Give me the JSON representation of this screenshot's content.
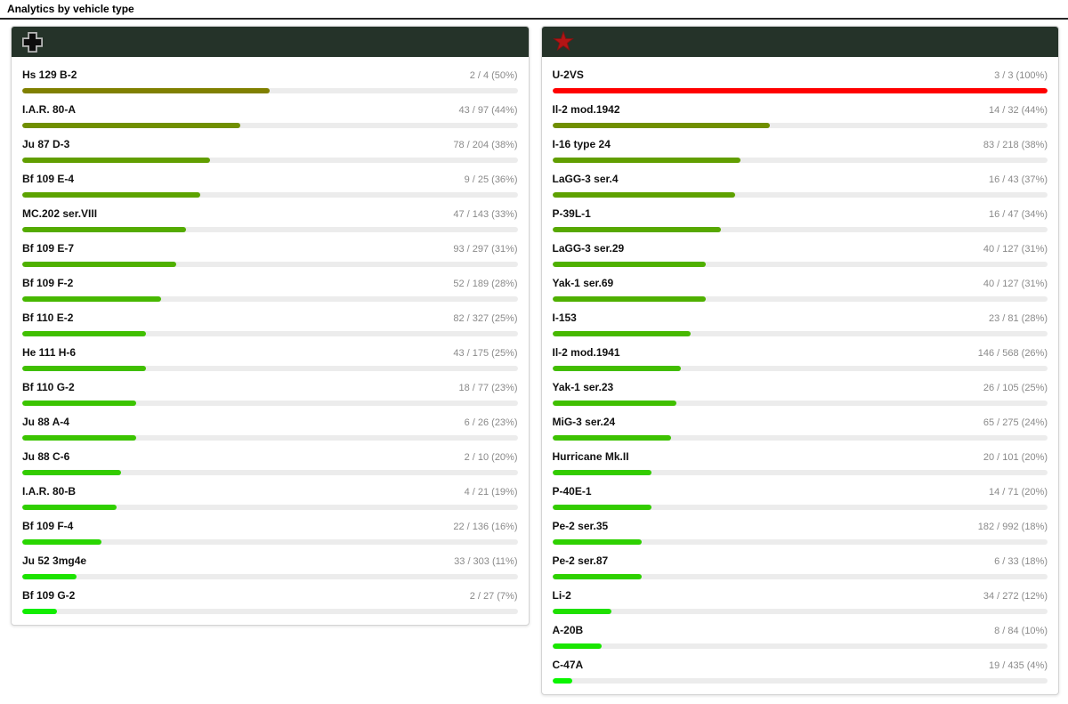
{
  "page": {
    "title": "Analytics by vehicle type"
  },
  "colors": {
    "title_underline": "#262626",
    "panel_header_bg": "#253329",
    "card_border": "#d4d4d4",
    "track_bg": "#ececec",
    "name_text": "#111111",
    "value_text": "#8a8a8a",
    "bar_100pct_red": "#ee0000",
    "bar_50pct_olive": "#7f7f00",
    "bar_low_green": "#12ed00",
    "star_red": "#b31515",
    "cross_black": "#0d0d0d",
    "cross_outline": "#b9b9b9"
  },
  "panels": [
    {
      "faction": "germany",
      "icon": "balkenkreuz-icon",
      "rows": [
        {
          "name": "Hs 129 B-2",
          "value": "2 / 4 (50%)",
          "pct": 50
        },
        {
          "name": "I.A.R. 80-A",
          "value": "43 / 97 (44%)",
          "pct": 44
        },
        {
          "name": "Ju 87 D-3",
          "value": "78 / 204 (38%)",
          "pct": 38
        },
        {
          "name": "Bf 109 E-4",
          "value": "9 / 25 (36%)",
          "pct": 36
        },
        {
          "name": "MC.202 ser.VIII",
          "value": "47 / 143 (33%)",
          "pct": 33
        },
        {
          "name": "Bf 109 E-7",
          "value": "93 / 297 (31%)",
          "pct": 31
        },
        {
          "name": "Bf 109 F-2",
          "value": "52 / 189 (28%)",
          "pct": 28
        },
        {
          "name": "Bf 110 E-2",
          "value": "82 / 327 (25%)",
          "pct": 25
        },
        {
          "name": "He 111 H-6",
          "value": "43 / 175 (25%)",
          "pct": 25
        },
        {
          "name": "Bf 110 G-2",
          "value": "18 / 77 (23%)",
          "pct": 23
        },
        {
          "name": "Ju 88 A-4",
          "value": "6 / 26 (23%)",
          "pct": 23
        },
        {
          "name": "Ju 88 C-6",
          "value": "2 / 10 (20%)",
          "pct": 20
        },
        {
          "name": "I.A.R. 80-B",
          "value": "4 / 21 (19%)",
          "pct": 19
        },
        {
          "name": "Bf 109 F-4",
          "value": "22 / 136 (16%)",
          "pct": 16
        },
        {
          "name": "Ju 52 3mg4e",
          "value": "33 / 303 (11%)",
          "pct": 11
        },
        {
          "name": "Bf 109 G-2",
          "value": "2 / 27 (7%)",
          "pct": 7
        }
      ]
    },
    {
      "faction": "ussr",
      "icon": "red-star-icon",
      "rows": [
        {
          "name": "U-2VS",
          "value": "3 / 3 (100%)",
          "pct": 100
        },
        {
          "name": "Il-2 mod.1942",
          "value": "14 / 32 (44%)",
          "pct": 44
        },
        {
          "name": "I-16 type 24",
          "value": "83 / 218 (38%)",
          "pct": 38
        },
        {
          "name": "LaGG-3 ser.4",
          "value": "16 / 43 (37%)",
          "pct": 37
        },
        {
          "name": "P-39L-1",
          "value": "16 / 47 (34%)",
          "pct": 34
        },
        {
          "name": "LaGG-3 ser.29",
          "value": "40 / 127 (31%)",
          "pct": 31
        },
        {
          "name": "Yak-1 ser.69",
          "value": "40 / 127 (31%)",
          "pct": 31
        },
        {
          "name": "I-153",
          "value": "23 / 81 (28%)",
          "pct": 28
        },
        {
          "name": "Il-2 mod.1941",
          "value": "146 / 568 (26%)",
          "pct": 26
        },
        {
          "name": "Yak-1 ser.23",
          "value": "26 / 105 (25%)",
          "pct": 25
        },
        {
          "name": "MiG-3 ser.24",
          "value": "65 / 275 (24%)",
          "pct": 24
        },
        {
          "name": "Hurricane Mk.II",
          "value": "20 / 101 (20%)",
          "pct": 20
        },
        {
          "name": "P-40E-1",
          "value": "14 / 71 (20%)",
          "pct": 20
        },
        {
          "name": "Pe-2 ser.35",
          "value": "182 / 992 (18%)",
          "pct": 18
        },
        {
          "name": "Pe-2 ser.87",
          "value": "6 / 33 (18%)",
          "pct": 18
        },
        {
          "name": "Li-2",
          "value": "34 / 272 (12%)",
          "pct": 12
        },
        {
          "name": "A-20B",
          "value": "8 / 84 (10%)",
          "pct": 10
        },
        {
          "name": "C-47A",
          "value": "19 / 435 (4%)",
          "pct": 4
        }
      ]
    }
  ],
  "chart_data": [
    {
      "type": "bar",
      "orientation": "horizontal",
      "title": "Analytics by vehicle type — Germany panel",
      "categories": [
        "Hs 129 B-2",
        "I.A.R. 80-A",
        "Ju 87 D-3",
        "Bf 109 E-4",
        "MC.202 ser.VIII",
        "Bf 109 E-7",
        "Bf 109 F-2",
        "Bf 110 E-2",
        "He 111 H-6",
        "Bf 110 G-2",
        "Ju 88 A-4",
        "Ju 88 C-6",
        "I.A.R. 80-B",
        "Bf 109 F-4",
        "Ju 52 3mg4e",
        "Bf 109 G-2"
      ],
      "values": [
        50,
        44,
        38,
        36,
        33,
        31,
        28,
        25,
        25,
        23,
        23,
        20,
        19,
        16,
        11,
        7
      ],
      "value_labels": [
        "2 / 4 (50%)",
        "43 / 97 (44%)",
        "78 / 204 (38%)",
        "9 / 25 (36%)",
        "47 / 143 (33%)",
        "93 / 297 (31%)",
        "52 / 189 (28%)",
        "82 / 327 (25%)",
        "43 / 175 (25%)",
        "18 / 77 (23%)",
        "6 / 26 (23%)",
        "2 / 10 (20%)",
        "4 / 21 (19%)",
        "22 / 136 (16%)",
        "33 / 303 (11%)",
        "2 / 27 (7%)"
      ],
      "xlim": [
        0,
        100
      ]
    },
    {
      "type": "bar",
      "orientation": "horizontal",
      "title": "Analytics by vehicle type — USSR panel",
      "categories": [
        "U-2VS",
        "Il-2 mod.1942",
        "I-16 type 24",
        "LaGG-3 ser.4",
        "P-39L-1",
        "LaGG-3 ser.29",
        "Yak-1 ser.69",
        "I-153",
        "Il-2 mod.1941",
        "Yak-1 ser.23",
        "MiG-3 ser.24",
        "Hurricane Mk.II",
        "P-40E-1",
        "Pe-2 ser.35",
        "Pe-2 ser.87",
        "Li-2",
        "A-20B",
        "C-47A"
      ],
      "values": [
        100,
        44,
        38,
        37,
        34,
        31,
        31,
        28,
        26,
        25,
        24,
        20,
        20,
        18,
        18,
        12,
        10,
        4
      ],
      "value_labels": [
        "3 / 3 (100%)",
        "14 / 32 (44%)",
        "83 / 218 (38%)",
        "16 / 43 (37%)",
        "16 / 47 (34%)",
        "40 / 127 (31%)",
        "40 / 127 (31%)",
        "23 / 81 (28%)",
        "146 / 568 (26%)",
        "26 / 105 (25%)",
        "65 / 275 (24%)",
        "20 / 101 (20%)",
        "14 / 71 (20%)",
        "182 / 992 (18%)",
        "6 / 33 (18%)",
        "34 / 272 (12%)",
        "8 / 84 (10%)",
        "19 / 435 (4%)"
      ],
      "xlim": [
        0,
        100
      ]
    }
  ]
}
